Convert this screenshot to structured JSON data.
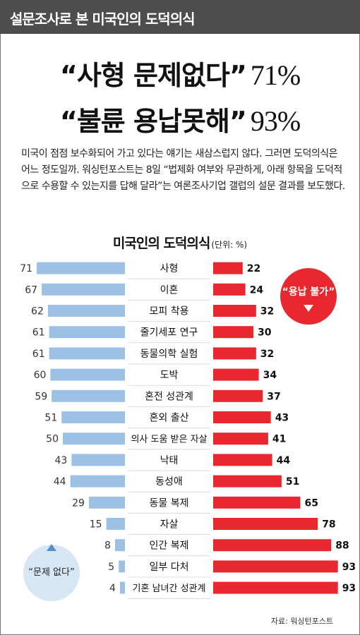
{
  "header": {
    "title": "설문조사로 본 미국인의 도덕의식"
  },
  "headline": {
    "line1_text": "“사형 문제없다”",
    "line1_value": "71%",
    "line2_text": "“불륜 용납못해”",
    "line2_value": "93%"
  },
  "intro": "미국이 점점 보수화되어 가고 있다는 얘기는 새삼스럽지 않다. 그러면 도덕의식은 어느 정도일까. 워싱턴포스트는 8일 “법제화 여부와 무관하게, 아래 항목을 도덕적으로 수용할 수 있는지를 답해 달라”는 여론조사기업 갤럽의 설문 결과를 보도했다.",
  "chart_title": "미국인의 도덕의식",
  "chart_unit": "(단위: %)",
  "source": "자료: 워싱턴포스트",
  "colors": {
    "accept": "#9cc1e4",
    "reject": "#e8272e",
    "header": "#4d4d4d",
    "label_box": "#ffffff"
  },
  "chart_data": {
    "type": "bar",
    "title": "미국인의 도덕의식",
    "unit": "(단위: %)",
    "categories": [
      "사형",
      "이혼",
      "모피 착용",
      "줄기세포 연구",
      "동물의학 실험",
      "도박",
      "혼전 성관계",
      "혼외 출산",
      "의사 도움 받은 자살",
      "낙태",
      "동성애",
      "동물 복제",
      "자살",
      "인간 복제",
      "일부 다처",
      "기혼 남녀간 성관계"
    ],
    "series": [
      {
        "name": "문제 없다",
        "values": [
          71,
          67,
          62,
          61,
          61,
          60,
          59,
          51,
          50,
          43,
          44,
          29,
          15,
          8,
          5,
          4
        ]
      },
      {
        "name": "용납 불가",
        "values": [
          22,
          24,
          32,
          30,
          32,
          34,
          37,
          43,
          41,
          44,
          51,
          65,
          78,
          88,
          93,
          93
        ]
      }
    ],
    "legend": [
      {
        "label": "“용납 불가”",
        "icon": "down-arrow-icon",
        "placement": "top-right"
      },
      {
        "label": "“문제 없다”",
        "icon": "up-arrow-icon",
        "placement": "bottom-left"
      }
    ],
    "xlim": [
      0,
      100
    ]
  }
}
